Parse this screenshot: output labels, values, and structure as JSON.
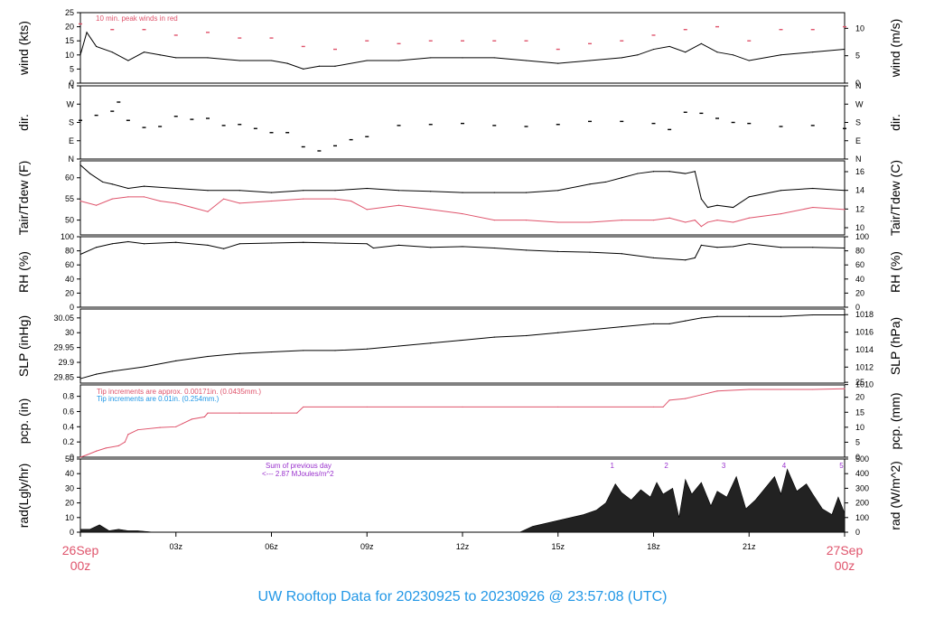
{
  "footer_title": "UW Rooftop Data for 20230925  to  20230926 @ 23:57:08  (UTC)",
  "colors": {
    "main": "#000000",
    "red": "#df536b",
    "blue": "#2297e6",
    "purple": "#9a32cd",
    "footer": "#2297e6"
  },
  "time_axis": {
    "start_label": [
      "26Sep",
      "00z"
    ],
    "end_label": [
      "27Sep",
      "00z"
    ],
    "ticks": [
      "03z",
      "06z",
      "09z",
      "12z",
      "15z",
      "18z",
      "21z"
    ],
    "tick_hours": [
      3,
      6,
      9,
      12,
      15,
      18,
      21
    ],
    "range_hours": [
      0,
      24
    ]
  },
  "chart_data": [
    {
      "type": "line",
      "panel": "wind",
      "ylabel": "wind (kts)",
      "ylabel_right": "wind (m/s)",
      "ylim": [
        0,
        25
      ],
      "yticks": [
        0,
        5,
        10,
        15,
        20,
        25
      ],
      "yticks_right": [
        0,
        5,
        10
      ],
      "annotations": [
        "10 min. peak winds in red"
      ],
      "series": [
        {
          "role": "speed",
          "color": "#000000",
          "x": [
            0,
            0.2,
            0.5,
            1,
            1.5,
            2,
            2.5,
            3,
            4,
            5,
            6,
            6.5,
            7,
            7.5,
            8,
            9,
            10,
            11,
            12,
            13,
            14,
            15,
            16,
            17,
            17.5,
            18,
            18.5,
            19,
            19.5,
            20,
            20.5,
            21,
            22,
            23,
            24
          ],
          "values": [
            10,
            18,
            13,
            11,
            8,
            11,
            10,
            9,
            9,
            8,
            8,
            7,
            5,
            6,
            6,
            8,
            8,
            9,
            9,
            9,
            8,
            7,
            8,
            9,
            10,
            12,
            13,
            11,
            14,
            11,
            10,
            8,
            10,
            11,
            12
          ]
        },
        {
          "role": "peak",
          "color": "#df536b",
          "x": [
            0,
            1,
            2,
            3,
            4,
            5,
            6,
            7,
            8,
            9,
            10,
            11,
            12,
            13,
            14,
            15,
            16,
            17,
            18,
            19,
            20,
            21,
            22,
            23,
            24
          ],
          "values": [
            21,
            19,
            19,
            17,
            18,
            16,
            16,
            13,
            12,
            15,
            14,
            15,
            15,
            15,
            15,
            12,
            14,
            15,
            17,
            19,
            20,
            15,
            19,
            19,
            20
          ]
        }
      ]
    },
    {
      "type": "scatter",
      "panel": "direction",
      "ylabel": "dir.",
      "ylabel_right": "dir.",
      "ylim": [
        0,
        360
      ],
      "yticks": [
        0,
        90,
        180,
        270,
        360
      ],
      "yticklabels": [
        "N",
        "E",
        "S",
        "W",
        "N"
      ],
      "series": [
        {
          "role": "direction",
          "color": "#000000",
          "x": [
            0,
            0.5,
            1,
            1.2,
            1.5,
            2,
            2.5,
            3,
            3.5,
            4,
            4.5,
            5,
            5.5,
            6,
            6.5,
            7,
            7.5,
            8,
            8.5,
            9,
            10,
            11,
            12,
            13,
            14,
            15,
            16,
            17,
            18,
            18.5,
            19,
            19.5,
            20,
            20.5,
            21,
            22,
            23,
            24
          ],
          "values": [
            190,
            215,
            235,
            280,
            190,
            155,
            160,
            210,
            195,
            200,
            165,
            170,
            150,
            130,
            130,
            60,
            40,
            65,
            95,
            110,
            165,
            170,
            175,
            165,
            160,
            170,
            185,
            185,
            175,
            145,
            230,
            225,
            200,
            180,
            175,
            160,
            165,
            150
          ]
        }
      ]
    },
    {
      "type": "line",
      "panel": "temperature",
      "ylabel": "Tair/Tdew (F)",
      "ylabel_right": "Tair/Tdew (C)",
      "ylim": [
        46.5,
        64
      ],
      "yticks": [
        50,
        55,
        60
      ],
      "yticks_right": [
        10,
        12,
        14,
        16
      ],
      "series": [
        {
          "role": "air temperature",
          "color": "#000000",
          "x": [
            0,
            0.3,
            0.7,
            1,
            1.5,
            2,
            3,
            4,
            5,
            6,
            7,
            8,
            9,
            10,
            11,
            12,
            13,
            14,
            15,
            16,
            16.5,
            17,
            17.5,
            18,
            18.5,
            19,
            19.3,
            19.5,
            19.7,
            20,
            20.5,
            21,
            22,
            23,
            24
          ],
          "values": [
            63,
            61,
            59,
            58.5,
            57.5,
            58,
            57.5,
            57,
            57,
            56.5,
            57,
            57,
            57.5,
            57,
            56.8,
            56.5,
            56.5,
            56.5,
            57,
            58.5,
            59,
            60,
            61,
            61.5,
            61.5,
            61,
            61.5,
            55,
            53,
            53.5,
            53,
            55.5,
            57,
            57.5,
            57
          ]
        },
        {
          "role": "dew point",
          "color": "#df536b",
          "x": [
            0,
            0.5,
            1,
            1.5,
            2,
            2.5,
            3,
            3.5,
            4,
            4.5,
            5,
            6,
            7,
            8,
            8.5,
            9,
            10,
            11,
            12,
            13,
            14,
            15,
            16,
            17,
            18,
            18.5,
            19,
            19.3,
            19.5,
            19.7,
            20,
            20.5,
            21,
            22,
            23,
            24
          ],
          "values": [
            54.5,
            53.5,
            55,
            55.5,
            55.5,
            54.5,
            54,
            53,
            52,
            55,
            54,
            54.5,
            55,
            55,
            54.5,
            52.5,
            53.5,
            52.5,
            51.5,
            50,
            50,
            49.5,
            49.5,
            50,
            50,
            50.5,
            49.5,
            50,
            48.5,
            49.5,
            50,
            49.5,
            50.5,
            51.5,
            53,
            52.5
          ]
        }
      ]
    },
    {
      "type": "line",
      "panel": "humidity",
      "ylabel": "RH (%)",
      "ylabel_right": "RH (%)",
      "ylim": [
        0,
        100
      ],
      "yticks": [
        0,
        20,
        40,
        60,
        80,
        100
      ],
      "series": [
        {
          "role": "relative humidity",
          "color": "#000000",
          "x": [
            0,
            0.5,
            1,
            1.5,
            2,
            3,
            4,
            4.5,
            5,
            6,
            7,
            8,
            9,
            9.2,
            10,
            11,
            12,
            13,
            14,
            15,
            16,
            17,
            18,
            19,
            19.3,
            19.5,
            20,
            20.5,
            21,
            22,
            23,
            24
          ],
          "values": [
            75,
            85,
            90,
            93,
            90,
            92,
            88,
            83,
            90,
            91,
            92,
            91,
            90,
            84,
            88,
            85,
            86,
            84,
            81,
            79,
            78,
            76,
            70,
            67,
            70,
            88,
            85,
            86,
            90,
            85,
            85,
            84
          ]
        }
      ]
    },
    {
      "type": "line",
      "panel": "pressure",
      "ylabel": "SLP (inHg)",
      "ylabel_right": "SLP (hPa)",
      "ylim": [
        29.83,
        30.08
      ],
      "yticks": [
        29.85,
        29.9,
        29.95,
        30.0,
        30.05
      ],
      "yticks_right": [
        1010,
        1012,
        1014,
        1016,
        1018
      ],
      "series": [
        {
          "role": "sea level pressure",
          "color": "#000000",
          "x": [
            0,
            0.5,
            1,
            2,
            3,
            4,
            5,
            6,
            7,
            8,
            9,
            10,
            11,
            12,
            13,
            14,
            15,
            16,
            17,
            18,
            18.5,
            19,
            19.5,
            20,
            21,
            22,
            23,
            24
          ],
          "values": [
            29.845,
            29.86,
            29.87,
            29.885,
            29.905,
            29.92,
            29.93,
            29.935,
            29.94,
            29.94,
            29.945,
            29.955,
            29.965,
            29.975,
            29.985,
            29.99,
            30.0,
            30.01,
            30.02,
            30.03,
            30.03,
            30.04,
            30.05,
            30.055,
            30.055,
            30.055,
            30.06,
            30.06
          ]
        }
      ]
    },
    {
      "type": "line",
      "panel": "precipitation",
      "ylabel": "pcp. (in)",
      "ylabel_right": "pcp. (mm)",
      "ylim": [
        0,
        0.95
      ],
      "yticks": [
        0.0,
        0.2,
        0.4,
        0.6,
        0.8
      ],
      "yticks_right": [
        0,
        5,
        10,
        15,
        20,
        25
      ],
      "annotations": [
        {
          "text": "Tip increments are approx. 0.00171in. (0.0435mm.)",
          "color": "#df536b"
        },
        {
          "text": "Tip increments are 0.01in. (0.254mm.)",
          "color": "#2297e6"
        }
      ],
      "series": [
        {
          "role": "accumulated precipitation",
          "color": "#df536b",
          "x": [
            0,
            0.2,
            0.5,
            0.8,
            1.2,
            1.4,
            1.5,
            1.8,
            2.5,
            3,
            3.2,
            3.5,
            3.9,
            4.0,
            5,
            6,
            6.8,
            7.0,
            9,
            12,
            15,
            18,
            18.3,
            18.5,
            19,
            19.5,
            20,
            21,
            22,
            23,
            24
          ],
          "values": [
            0,
            0.03,
            0.08,
            0.12,
            0.15,
            0.2,
            0.3,
            0.36,
            0.39,
            0.4,
            0.44,
            0.5,
            0.53,
            0.58,
            0.58,
            0.58,
            0.58,
            0.66,
            0.66,
            0.66,
            0.66,
            0.66,
            0.66,
            0.75,
            0.77,
            0.82,
            0.87,
            0.89,
            0.89,
            0.89,
            0.9
          ]
        }
      ]
    },
    {
      "type": "area",
      "panel": "radiation",
      "ylabel": "rad(Lgly/hr)",
      "ylabel_right": "rad (W/m^2)",
      "ylim": [
        0,
        50
      ],
      "yticks": [
        0,
        10,
        20,
        30,
        40,
        50
      ],
      "yticks_right": [
        0,
        100,
        200,
        300,
        400,
        500
      ],
      "annotations": [
        {
          "text": "Sum of previous day",
          "color": "#9a32cd"
        },
        {
          "text": "<--- 2.87 MJoules/m^2",
          "color": "#9a32cd"
        }
      ],
      "markers": {
        "labels": [
          "1",
          "2",
          "3",
          "4",
          "5"
        ],
        "x": [
          16.7,
          18.4,
          20.2,
          22.1,
          23.9
        ]
      },
      "series": [
        {
          "role": "solar radiation",
          "color": "#000000",
          "x": [
            0,
            0.3,
            0.6,
            0.9,
            1.2,
            1.5,
            1.8,
            2.3,
            13.8,
            14.2,
            14.6,
            15.0,
            15.4,
            15.8,
            16.2,
            16.5,
            16.8,
            17.0,
            17.3,
            17.6,
            17.9,
            18.1,
            18.3,
            18.6,
            18.8,
            19.0,
            19.2,
            19.5,
            19.8,
            20.0,
            20.3,
            20.6,
            20.9,
            21.2,
            21.5,
            21.8,
            22.0,
            22.2,
            22.5,
            22.8,
            23.0,
            23.3,
            23.6,
            23.8,
            24.0
          ],
          "values": [
            2,
            2,
            5,
            1,
            2,
            1,
            1,
            0,
            0,
            4,
            6,
            8,
            10,
            12,
            15,
            20,
            33,
            27,
            22,
            29,
            24,
            34,
            26,
            30,
            10,
            36,
            26,
            34,
            18,
            28,
            24,
            38,
            16,
            22,
            30,
            38,
            26,
            43,
            28,
            33,
            26,
            16,
            12,
            24,
            13
          ]
        }
      ]
    }
  ]
}
